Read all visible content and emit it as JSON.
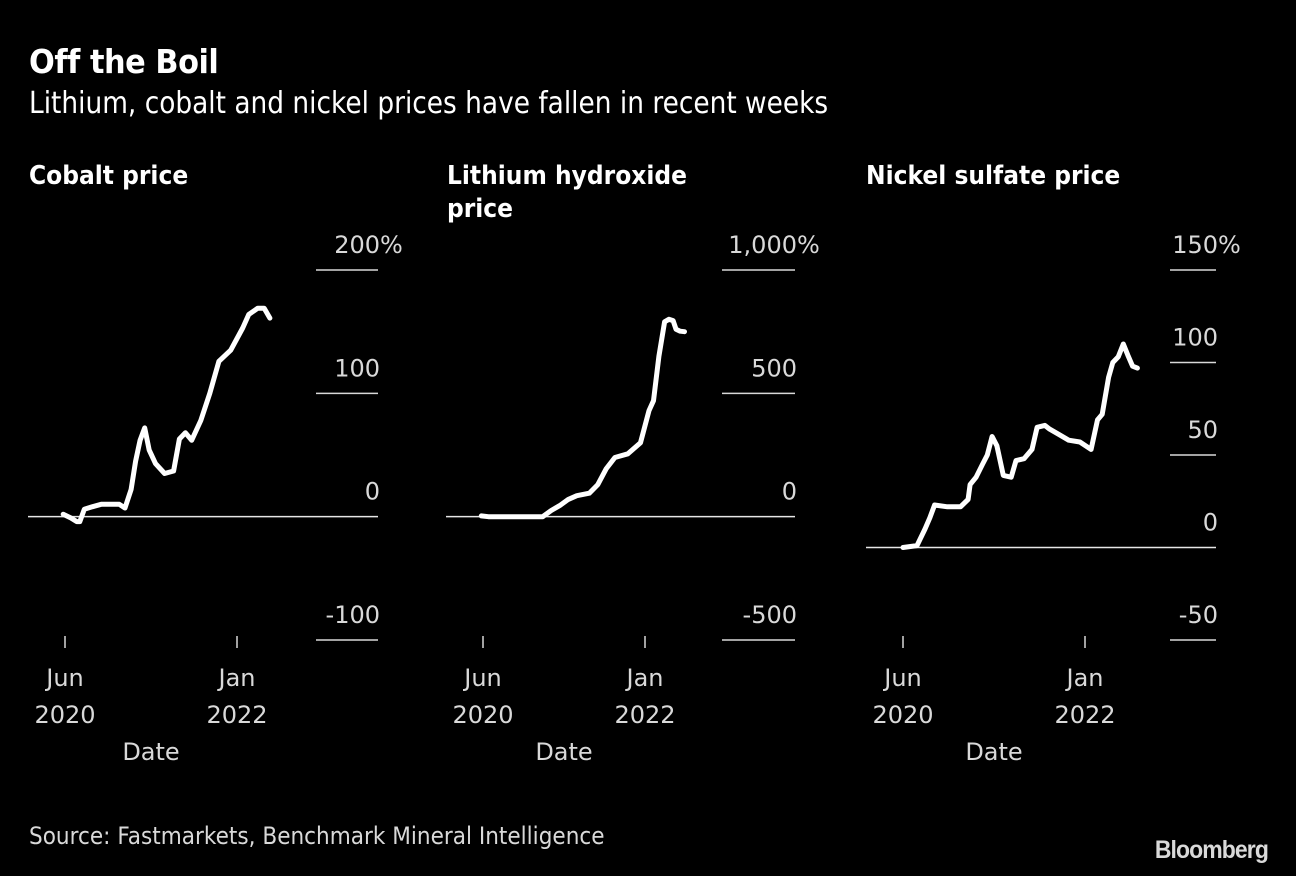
{
  "header": {
    "title": "Off the Boil",
    "subtitle": "Lithium, cobalt and nickel prices have fallen in recent weeks"
  },
  "footer": {
    "source": "Source: Fastmarkets, Benchmark Mineral Intelligence",
    "logo": "Bloomberg"
  },
  "colors": {
    "background": "#000000",
    "line": "#ffffff",
    "grid": "#d9d9d9"
  },
  "chart_data": [
    {
      "type": "line",
      "title": "Cobalt price",
      "title_lines": [
        "Cobalt price"
      ],
      "xlabel": "Date",
      "ylabel": "",
      "unit": "%",
      "ylim": [
        -100,
        200
      ],
      "yticks": [
        200,
        100,
        0,
        -100
      ],
      "ytick_labels": [
        "200%",
        "100",
        "0",
        "-100"
      ],
      "xticks": [
        {
          "date": "2020-06",
          "label": [
            "Jun",
            "2020"
          ]
        },
        {
          "date": "2022-01",
          "label": [
            "Jan",
            "2022"
          ]
        }
      ],
      "xlim": [
        "2020-01",
        "2022-12"
      ],
      "grid": true,
      "legend": "none",
      "series": [
        {
          "name": "Cobalt price change",
          "points": [
            [
              "2020-05-25",
              2
            ],
            [
              "2020-06-20",
              -1
            ],
            [
              "2020-07-10",
              -4
            ],
            [
              "2020-07-20",
              -4
            ],
            [
              "2020-08-05",
              6
            ],
            [
              "2020-09-01",
              8
            ],
            [
              "2020-10-01",
              10
            ],
            [
              "2020-11-01",
              10
            ],
            [
              "2020-12-01",
              10
            ],
            [
              "2020-12-20",
              7
            ],
            [
              "2021-01-10",
              22
            ],
            [
              "2021-01-25",
              45
            ],
            [
              "2021-02-10",
              62
            ],
            [
              "2021-02-25",
              72
            ],
            [
              "2021-03-10",
              54
            ],
            [
              "2021-04-01",
              43
            ],
            [
              "2021-05-01",
              35
            ],
            [
              "2021-06-01",
              37
            ],
            [
              "2021-06-20",
              63
            ],
            [
              "2021-07-10",
              68
            ],
            [
              "2021-08-01",
              62
            ],
            [
              "2021-09-01",
              78
            ],
            [
              "2021-10-01",
              100
            ],
            [
              "2021-11-01",
              126
            ],
            [
              "2021-12-10",
              135
            ],
            [
              "2022-01-20",
              153
            ],
            [
              "2022-02-10",
              164
            ],
            [
              "2022-03-10",
              169
            ],
            [
              "2022-04-01",
              169
            ],
            [
              "2022-04-20",
              161
            ]
          ]
        }
      ]
    },
    {
      "type": "line",
      "title": "Lithium hydroxide price",
      "title_lines": [
        "Lithium hydroxide",
        "price"
      ],
      "xlabel": "Date",
      "ylabel": "",
      "unit": "%",
      "ylim": [
        -500,
        1000
      ],
      "yticks": [
        1000,
        500,
        0,
        -500
      ],
      "ytick_labels": [
        "1,000%",
        "500",
        "0",
        "-500"
      ],
      "xticks": [
        {
          "date": "2020-06",
          "label": [
            "Jun",
            "2020"
          ]
        },
        {
          "date": "2022-01",
          "label": [
            "Jan",
            "2022"
          ]
        }
      ],
      "xlim": [
        "2020-01",
        "2022-12"
      ],
      "grid": true,
      "legend": "none",
      "series": [
        {
          "name": "Lithium hydroxide price change",
          "points": [
            [
              "2020-05-25",
              3
            ],
            [
              "2020-06-20",
              0
            ],
            [
              "2020-09-01",
              0
            ],
            [
              "2020-12-01",
              0
            ],
            [
              "2021-01-01",
              0
            ],
            [
              "2021-02-01",
              25
            ],
            [
              "2021-03-01",
              45
            ],
            [
              "2021-04-01",
              70
            ],
            [
              "2021-05-01",
              85
            ],
            [
              "2021-06-15",
              95
            ],
            [
              "2021-07-15",
              130
            ],
            [
              "2021-08-15",
              195
            ],
            [
              "2021-09-15",
              240
            ],
            [
              "2021-11-01",
              255
            ],
            [
              "2021-12-15",
              300
            ],
            [
              "2022-01-15",
              430
            ],
            [
              "2022-02-01",
              470
            ],
            [
              "2022-02-20",
              650
            ],
            [
              "2022-03-10",
              790
            ],
            [
              "2022-03-25",
              800
            ],
            [
              "2022-04-10",
              795
            ],
            [
              "2022-04-20",
              760
            ],
            [
              "2022-05-05",
              752
            ],
            [
              "2022-05-20",
              750
            ]
          ]
        }
      ]
    },
    {
      "type": "line",
      "title": "Nickel sulfate price",
      "title_lines": [
        "Nickel sulfate price"
      ],
      "xlabel": "Date",
      "ylabel": "",
      "unit": "%",
      "ylim": [
        -50,
        150
      ],
      "yticks": [
        150,
        100,
        50,
        0,
        -50
      ],
      "ytick_labels": [
        "150%",
        "100",
        "50",
        "0",
        "-50"
      ],
      "xticks": [
        {
          "date": "2020-06",
          "label": [
            "Jun",
            "2020"
          ]
        },
        {
          "date": "2022-01",
          "label": [
            "Jan",
            "2022"
          ]
        }
      ],
      "xlim": [
        "2020-01",
        "2022-12"
      ],
      "grid": true,
      "legend": "none",
      "series": [
        {
          "name": "Nickel sulfate price change",
          "points": [
            [
              "2020-06-01",
              0
            ],
            [
              "2020-07-15",
              1
            ],
            [
              "2020-08-10",
              10
            ],
            [
              "2020-08-25",
              16
            ],
            [
              "2020-09-10",
              23
            ],
            [
              "2020-10-20",
              22
            ],
            [
              "2020-12-01",
              22
            ],
            [
              "2020-12-25",
              26
            ],
            [
              "2021-01-01",
              34
            ],
            [
              "2021-01-20",
              38
            ],
            [
              "2021-02-10",
              45
            ],
            [
              "2021-02-25",
              50
            ],
            [
              "2021-03-10",
              60
            ],
            [
              "2021-03-25",
              55
            ],
            [
              "2021-04-15",
              39
            ],
            [
              "2021-05-10",
              38
            ],
            [
              "2021-05-25",
              47
            ],
            [
              "2021-06-20",
              48
            ],
            [
              "2021-07-15",
              53
            ],
            [
              "2021-08-01",
              65
            ],
            [
              "2021-08-25",
              66
            ],
            [
              "2021-09-10",
              64
            ],
            [
              "2021-10-10",
              61
            ],
            [
              "2021-11-10",
              58
            ],
            [
              "2021-12-15",
              57
            ],
            [
              "2022-01-20",
              53
            ],
            [
              "2022-02-10",
              69
            ],
            [
              "2022-02-25",
              72
            ],
            [
              "2022-03-15",
              92
            ],
            [
              "2022-03-28",
              100
            ],
            [
              "2022-04-15",
              103
            ],
            [
              "2022-05-01",
              110
            ],
            [
              "2022-05-15",
              104
            ],
            [
              "2022-05-30",
              98
            ],
            [
              "2022-06-15",
              97
            ]
          ]
        }
      ]
    }
  ]
}
